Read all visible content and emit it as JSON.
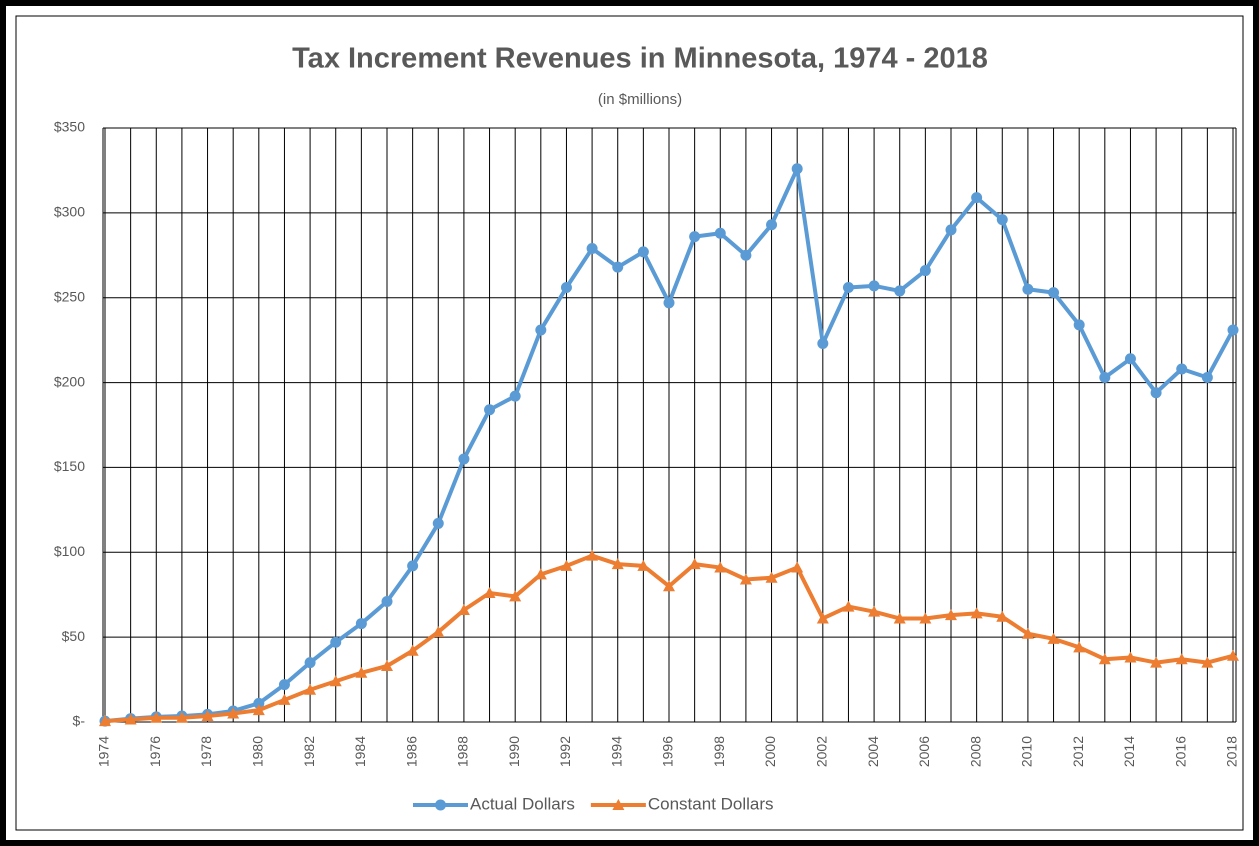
{
  "chart_data": {
    "type": "line",
    "title": "Tax Increment Revenues in Minnesota,  1974 - 2018",
    "subtitle": "(in $millions)",
    "categories": [
      "1974",
      null,
      "1976",
      null,
      "1978",
      null,
      "1980",
      null,
      "1982",
      null,
      "1984",
      null,
      "1986",
      null,
      "1988",
      null,
      "1990",
      null,
      "1992",
      null,
      "1994",
      null,
      "1996",
      null,
      "1998",
      null,
      "2000",
      null,
      "2002",
      null,
      "2004",
      null,
      "2006",
      null,
      "2008",
      null,
      "2010",
      null,
      "2012",
      null,
      "2014",
      null,
      "2016",
      null,
      "2018"
    ],
    "series": [
      {
        "name": "Actual Dollars",
        "color": "#5b9bd5",
        "marker": "circle",
        "values": [
          0.5,
          2,
          3,
          3.5,
          4.5,
          6.5,
          11,
          22,
          35,
          47,
          58,
          71,
          92,
          117,
          155,
          184,
          192,
          231,
          256,
          279,
          268,
          277,
          247,
          286,
          288,
          275,
          293,
          326,
          223,
          256,
          257,
          254,
          266,
          290,
          309,
          296,
          255,
          253,
          234,
          203,
          214,
          194,
          208,
          203,
          231
        ]
      },
      {
        "name": "Constant Dollars",
        "color": "#ed7d31",
        "marker": "triangle",
        "values": [
          0.5,
          1.5,
          2.5,
          2.5,
          3.5,
          5,
          7,
          13,
          19,
          24,
          29,
          33,
          42,
          53,
          66,
          76,
          74,
          87,
          92,
          98,
          93,
          92,
          80,
          93,
          91,
          84,
          85,
          91,
          61,
          68,
          65,
          61,
          61,
          63,
          64,
          62,
          52,
          49,
          44,
          37,
          38,
          35,
          37,
          35,
          39
        ]
      }
    ],
    "ylim": [
      0,
      350
    ],
    "yticks": [
      {
        "value": 0,
        "label": "$-"
      },
      {
        "value": 50,
        "label": "$50"
      },
      {
        "value": 100,
        "label": "$100"
      },
      {
        "value": 150,
        "label": "$150"
      },
      {
        "value": 200,
        "label": "$200"
      },
      {
        "value": 250,
        "label": "$250"
      },
      {
        "value": 300,
        "label": "$300"
      },
      {
        "value": 350,
        "label": "$350"
      }
    ],
    "grid": true,
    "legend": "bottom"
  }
}
